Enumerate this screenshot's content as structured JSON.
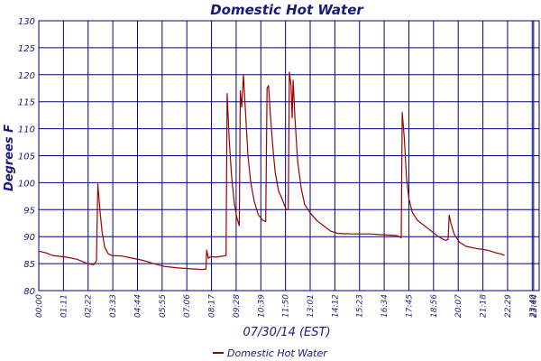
{
  "chart_data": {
    "type": "line",
    "title": "Domestic Hot Water",
    "ylabel": "Degrees F",
    "xlabel": "07/30/14 (EST)",
    "ylim": [
      80,
      130
    ],
    "yticks": [
      80,
      85,
      90,
      95,
      100,
      105,
      110,
      115,
      120,
      125,
      130
    ],
    "xlim_minutes": [
      0,
      1440
    ],
    "xticks": [
      {
        "label": "00:00",
        "minutes": 0
      },
      {
        "label": "01:11",
        "minutes": 71
      },
      {
        "label": "02:22",
        "minutes": 142
      },
      {
        "label": "03:33",
        "minutes": 213
      },
      {
        "label": "04:44",
        "minutes": 284
      },
      {
        "label": "05:55",
        "minutes": 355
      },
      {
        "label": "07:06",
        "minutes": 426
      },
      {
        "label": "08:17",
        "minutes": 497
      },
      {
        "label": "09:28",
        "minutes": 568
      },
      {
        "label": "10:39",
        "minutes": 639
      },
      {
        "label": "11:50",
        "minutes": 710
      },
      {
        "label": "13:01",
        "minutes": 781
      },
      {
        "label": "14:12",
        "minutes": 852
      },
      {
        "label": "15:23",
        "minutes": 923
      },
      {
        "label": "16:34",
        "minutes": 994
      },
      {
        "label": "17:45",
        "minutes": 1065
      },
      {
        "label": "18:56",
        "minutes": 1136
      },
      {
        "label": "20:07",
        "minutes": 1207
      },
      {
        "label": "21:18",
        "minutes": 1278
      },
      {
        "label": "22:29",
        "minutes": 1349
      },
      {
        "label": "23:40",
        "minutes": 1420
      },
      {
        "label": "23:44",
        "minutes": 1424
      }
    ],
    "grid": true,
    "legend": "bottom-center",
    "colors": {
      "series": "#990000",
      "grid": "#000080",
      "text": "#1a1a7a"
    },
    "series": [
      {
        "name": "Domestic Hot Water",
        "points": [
          [
            0,
            87.3
          ],
          [
            20,
            87
          ],
          [
            40,
            86.5
          ],
          [
            80,
            86.2
          ],
          [
            110,
            85.8
          ],
          [
            140,
            85
          ],
          [
            158,
            84.8
          ],
          [
            166,
            85.5
          ],
          [
            170,
            99.8
          ],
          [
            176,
            95
          ],
          [
            182,
            91
          ],
          [
            190,
            88
          ],
          [
            200,
            86.8
          ],
          [
            210,
            86.5
          ],
          [
            240,
            86.4
          ],
          [
            270,
            86
          ],
          [
            300,
            85.6
          ],
          [
            330,
            85
          ],
          [
            360,
            84.5
          ],
          [
            400,
            84.2
          ],
          [
            450,
            84
          ],
          [
            470,
            83.9
          ],
          [
            481,
            84
          ],
          [
            483,
            87.5
          ],
          [
            488,
            86
          ],
          [
            495,
            86.3
          ],
          [
            510,
            86.2
          ],
          [
            539,
            86.5
          ],
          [
            542,
            116.5
          ],
          [
            548,
            108
          ],
          [
            555,
            101
          ],
          [
            563,
            96
          ],
          [
            570,
            93.5
          ],
          [
            577,
            92
          ],
          [
            580,
            117
          ],
          [
            584,
            114
          ],
          [
            589,
            120
          ],
          [
            595,
            113
          ],
          [
            602,
            105
          ],
          [
            610,
            100
          ],
          [
            620,
            96.5
          ],
          [
            632,
            94
          ],
          [
            645,
            93
          ],
          [
            653,
            92.8
          ],
          [
            657,
            117.5
          ],
          [
            661,
            118
          ],
          [
            666,
            113
          ],
          [
            673,
            107
          ],
          [
            680,
            102
          ],
          [
            690,
            98.5
          ],
          [
            700,
            97
          ],
          [
            712,
            95
          ],
          [
            718,
            95
          ],
          [
            721,
            120.5
          ],
          [
            726,
            118
          ],
          [
            729,
            112
          ],
          [
            732,
            119
          ],
          [
            737,
            112
          ],
          [
            745,
            104
          ],
          [
            755,
            99
          ],
          [
            765,
            96
          ],
          [
            780,
            94.5
          ],
          [
            800,
            93
          ],
          [
            820,
            92
          ],
          [
            840,
            91
          ],
          [
            860,
            90.6
          ],
          [
            900,
            90.5
          ],
          [
            950,
            90.5
          ],
          [
            1000,
            90.3
          ],
          [
            1030,
            90.2
          ],
          [
            1043,
            89.8
          ],
          [
            1046,
            113
          ],
          [
            1052,
            108
          ],
          [
            1058,
            101
          ],
          [
            1065,
            97
          ],
          [
            1075,
            94.5
          ],
          [
            1090,
            93
          ],
          [
            1110,
            92
          ],
          [
            1130,
            91
          ],
          [
            1150,
            90
          ],
          [
            1170,
            89.3
          ],
          [
            1178,
            89.5
          ],
          [
            1181,
            94
          ],
          [
            1186,
            92.5
          ],
          [
            1195,
            90.5
          ],
          [
            1210,
            89
          ],
          [
            1230,
            88.2
          ],
          [
            1260,
            87.8
          ],
          [
            1290,
            87.5
          ],
          [
            1315,
            87
          ],
          [
            1330,
            86.8
          ],
          [
            1340,
            86.5
          ]
        ]
      }
    ]
  }
}
